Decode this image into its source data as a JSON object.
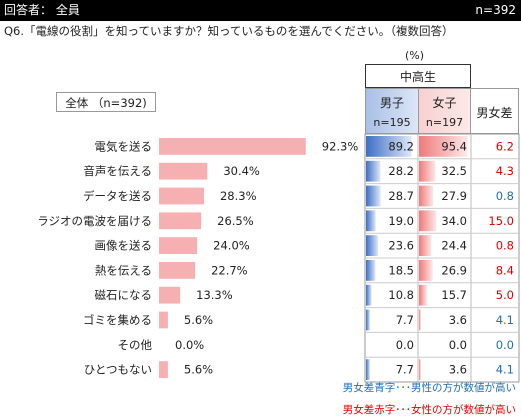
{
  "header": {
    "respondent": "回答者： 全員",
    "n_total": "n=392"
  },
  "question": "Q6.「電線の役割」を知っていますか？知っているものを選んでください。（複数回答）",
  "unit_label": "(%)",
  "table": {
    "grade_label": "中高生",
    "male_label": "男子",
    "male_n": "n=195",
    "female_label": "女子",
    "female_n": "n=197",
    "diff_label": "男女差"
  },
  "total_label": "全体 （n=392)",
  "legend": {
    "blue_note": "男女差青字･･･男性の方が数値が高い",
    "red_note": "男女差赤字･･･女性の方が数値が高い"
  },
  "colors": {
    "total_bar": "#f7b0b2",
    "male_bar": "#4a7fd0",
    "female_bar": "#f08a8a",
    "diff_blue": "#1f6fb5",
    "diff_red": "#e00000",
    "diff_zero": "#1f6fb5"
  },
  "chart_data": {
    "type": "bar",
    "categories": [
      "電気を送る",
      "音声を伝える",
      "データを送る",
      "ラジオの電波を届ける",
      "画像を送る",
      "熱を伝える",
      "磁石になる",
      "ゴミを集める",
      "その他",
      "ひとつもない"
    ],
    "series": [
      {
        "name": "全体",
        "values": [
          92.3,
          30.4,
          28.3,
          26.5,
          24.0,
          22.7,
          13.3,
          5.6,
          0.0,
          5.6
        ],
        "labels": [
          "92.3%",
          "30.4%",
          "28.3%",
          "26.5%",
          "24.0%",
          "22.7%",
          "13.3%",
          "5.6%",
          "0.0%",
          "5.6%"
        ]
      },
      {
        "name": "男子",
        "values": [
          89.2,
          28.2,
          28.7,
          19.0,
          23.6,
          18.5,
          10.8,
          7.7,
          0.0,
          7.7
        ],
        "labels": [
          "89.2",
          "28.2",
          "28.7",
          "19.0",
          "23.6",
          "18.5",
          "10.8",
          "7.7",
          "0.0",
          "7.7"
        ]
      },
      {
        "name": "女子",
        "values": [
          95.4,
          32.5,
          27.9,
          34.0,
          24.4,
          26.9,
          15.7,
          3.6,
          0.0,
          3.6
        ],
        "labels": [
          "95.4",
          "32.5",
          "27.9",
          "34.0",
          "24.4",
          "26.9",
          "15.7",
          "3.6",
          "0.0",
          "3.6"
        ]
      },
      {
        "name": "男女差",
        "values": [
          6.2,
          4.3,
          0.8,
          15.0,
          0.8,
          8.4,
          5.0,
          4.1,
          0.0,
          4.1
        ],
        "labels": [
          "6.2",
          "4.3",
          "0.8",
          "15.0",
          "0.8",
          "8.4",
          "5.0",
          "4.1",
          "0.0",
          "4.1"
        ],
        "direction": [
          "female",
          "female",
          "male",
          "female",
          "female",
          "female",
          "female",
          "male",
          "none",
          "male"
        ]
      }
    ],
    "ylim": [
      0,
      100
    ]
  }
}
